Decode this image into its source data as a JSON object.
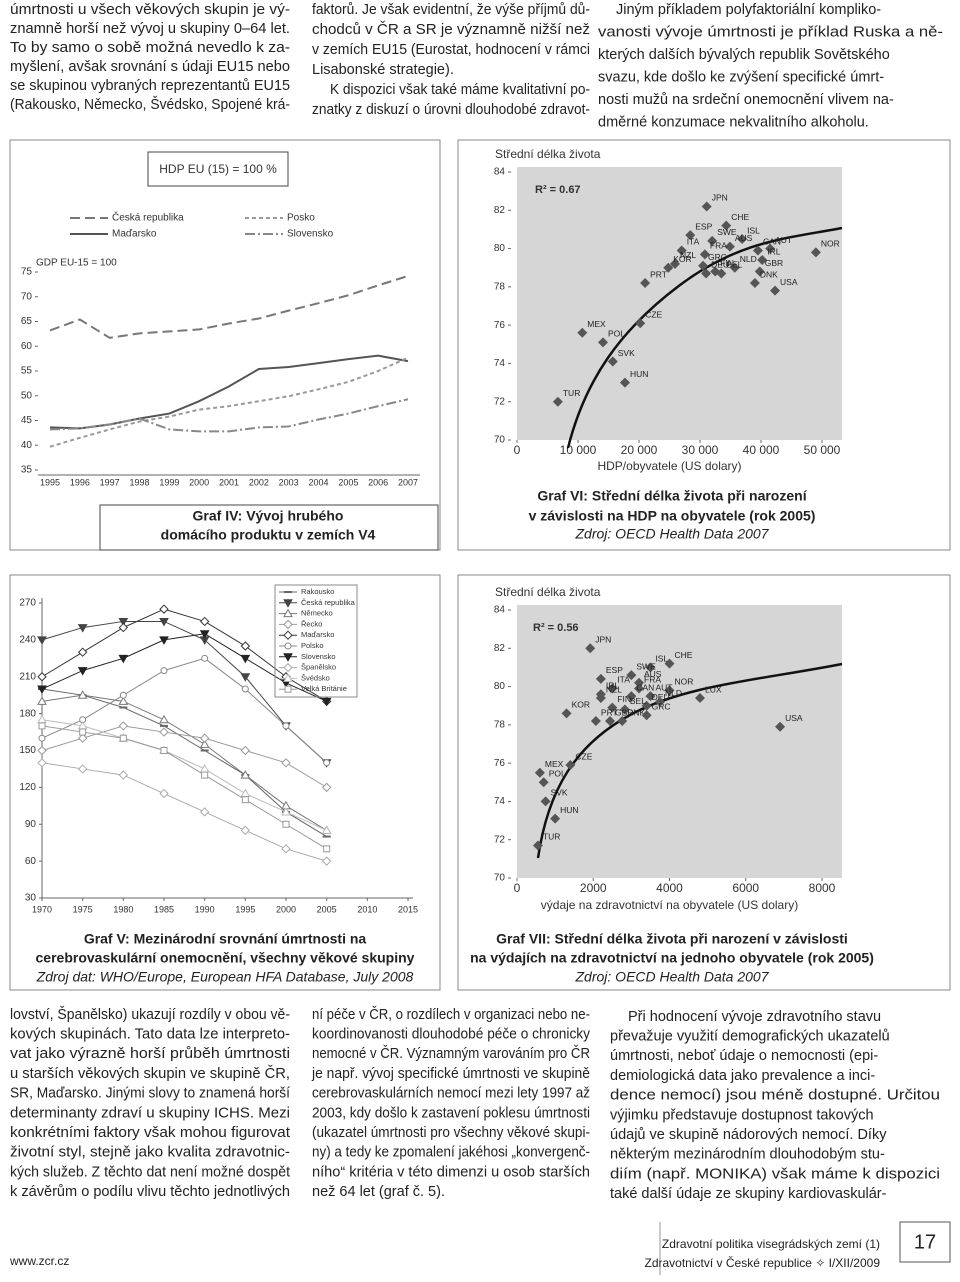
{
  "top_text": {
    "columns": [
      [
        "úmrtnosti u všech věkových skupin je vý-",
        "znamně horší než vývoj u skupiny 0–64 let.",
        "To by samo o sobě možná nevedlo k za-",
        "myšlení, avšak srovnání s údaji EU15 nebo",
        "se skupinou vybraných reprezentantů EU15",
        "(Rakousko, Německo, Švédsko, Spojené krá-"
      ],
      [
        "faktorů. Je však evidentní, že výše příjmů dů-",
        "chodců v ČR a SR je významně nižší než",
        "v zemích EU15 (Eurostat, hodnocení v rámci",
        "Lisabonské strategie).",
        "K dispozici však také máme kvalitativní po-",
        "znatky z diskuzí o úrovni dlouhodobé zdravot-"
      ],
      [
        "Jiným příkladem polyfaktoriální kompliko-",
        "vanosti vývoje úmrtnosti je příklad Ruska a ně-",
        "kterých dalších bývalých republik Sovětského",
        "svazu, kde došlo ke zvýšení specifické úmrt-",
        "nosti mužů na srdeční onemocnění vlivem na-",
        "dměrné konzumace nekvalitního alkoholu."
      ]
    ]
  },
  "chart_data": [
    {
      "type": "line",
      "title": [
        "Graf IV: Vývoj hrubého",
        "domácího produktu v zemích V4"
      ],
      "annotation": "HDP EU (15) = 100 %",
      "subtitle": "GDP EU-15 = 100",
      "categories": [
        "1995",
        "1996",
        "1997",
        "1998",
        "1999",
        "2000",
        "2001",
        "2002",
        "2003",
        "2004",
        "2005",
        "2006",
        "2007"
      ],
      "series": [
        {
          "name": "Česká republika",
          "color": "#777777",
          "dash": "10,5",
          "values": [
            63.2,
            65.4,
            61.7,
            62.6,
            63.0,
            63.4,
            64.6,
            65.6,
            67.2,
            68.7,
            70.3,
            72.3,
            74.2
          ]
        },
        {
          "name": "Maďarsko",
          "color": "#555555",
          "dash": "none",
          "values": [
            43.6,
            43.4,
            44.2,
            45.4,
            46.4,
            48.9,
            51.9,
            55.4,
            55.8,
            56.6,
            57.4,
            58.1,
            57.0
          ]
        },
        {
          "name": "Posko",
          "color": "#999999",
          "dash": "4,3",
          "values": [
            39.7,
            41.5,
            43.2,
            44.8,
            45.8,
            47.2,
            47.9,
            48.9,
            49.9,
            51.3,
            52.8,
            55.0,
            57.7
          ]
        },
        {
          "name": "Slovensko",
          "color": "#888888",
          "dash": "10,3,2,3",
          "values": [
            43.2,
            43.4,
            44.2,
            45.4,
            43.2,
            42.8,
            42.8,
            43.6,
            43.8,
            45.2,
            46.4,
            47.9,
            49.3
          ]
        }
      ],
      "ylim": [
        35,
        75
      ],
      "yticks": [
        35,
        40,
        45,
        50,
        55,
        60,
        65,
        70,
        75
      ]
    },
    {
      "type": "scatter",
      "title": [
        "Graf VI: Střední délka života při narození",
        "v závislosti na HDP na obyvatele (rok 2005)"
      ],
      "source": "Zdroj: OECD Health Data 2007",
      "ylabel": "Střední délka života",
      "xlabel": "HDP/obyvatele (US dolary)",
      "r2": "R² = 0.67",
      "color": "#555555",
      "labels": [
        "JPN",
        "CHE",
        "SWE",
        "ISL",
        "ESP",
        "AUS",
        "ITA",
        "CAN",
        "FRA",
        "AUT",
        "NOR",
        "NZL",
        "GRC",
        "KOR",
        "NLD",
        "IRL",
        "FIN",
        "BEL",
        "GBR",
        "DEU",
        "DNK",
        "USA",
        "PRT",
        "MEX",
        "POL",
        "CZE",
        "SVK",
        "HUN",
        "TUR"
      ],
      "x": [
        31100,
        34300,
        32000,
        36900,
        28400,
        34900,
        27000,
        39500,
        30800,
        41500,
        49000,
        25900,
        30500,
        24800,
        35700,
        40200,
        32500,
        33500,
        39800,
        31000,
        39000,
        42300,
        21000,
        10700,
        14100,
        20200,
        15700,
        17700,
        6700
      ],
      "y": [
        82.2,
        81.2,
        80.4,
        80.5,
        80.7,
        80.1,
        79.9,
        79.9,
        79.7,
        80.0,
        79.8,
        79.2,
        79.1,
        79.0,
        79.0,
        79.4,
        78.8,
        78.7,
        78.8,
        78.7,
        78.2,
        77.8,
        78.2,
        75.6,
        75.1,
        76.1,
        74.1,
        73.0,
        72.0
      ],
      "xlim": [
        0,
        50000
      ],
      "xticks": [
        0,
        {
          "value": 10000,
          "label": "10 000"
        },
        {
          "value": 20000,
          "label": "20 000"
        },
        {
          "value": 30000,
          "label": "30 000"
        },
        {
          "value": 40000,
          "label": "40 000"
        },
        {
          "value": 50000,
          "label": "50 000"
        }
      ],
      "ylim": [
        70,
        84
      ],
      "yticks": [
        70,
        72,
        74,
        76,
        78,
        80,
        82,
        84
      ]
    },
    {
      "type": "line",
      "title": [
        "Graf V: Mezinárodní srovnání úmrtnosti na",
        "cerebrovaskulární onemocnění, všechny věkové skupiny"
      ],
      "source": "Zdroj dat: WHO/Europe, European HFA Database, July 2008",
      "x": [
        1970,
        1975,
        1980,
        1985,
        1990,
        1995,
        2000,
        2005
      ],
      "series": [
        {
          "name": "Rakousko",
          "color": "#666666",
          "marker": "dash",
          "values": [
            200,
            195,
            185,
            170,
            150,
            130,
            100,
            80
          ]
        },
        {
          "name": "Česká republika",
          "color": "#444444",
          "marker": "tri-down",
          "values": [
            240,
            250,
            255,
            255,
            240,
            210,
            170,
            140
          ]
        },
        {
          "name": "Německo",
          "color": "#777777",
          "marker": "tri-up",
          "values": [
            190,
            195,
            190,
            175,
            155,
            130,
            105,
            85
          ]
        },
        {
          "name": "Řecko",
          "color": "#999999",
          "marker": "diamond",
          "values": [
            150,
            160,
            170,
            165,
            160,
            150,
            140,
            120
          ]
        },
        {
          "name": "Maďarsko",
          "color": "#333333",
          "marker": "diamond",
          "values": [
            210,
            230,
            250,
            265,
            255,
            235,
            210,
            190
          ]
        },
        {
          "name": "Polsko",
          "color": "#888888",
          "marker": "circle",
          "values": [
            160,
            175,
            195,
            215,
            225,
            200,
            170,
            140
          ]
        },
        {
          "name": "Slovensko",
          "color": "#222222",
          "marker": "tri-down",
          "values": [
            200,
            215,
            225,
            240,
            245,
            225,
            205,
            190
          ]
        },
        {
          "name": "Španělsko",
          "color": "#aaaaaa",
          "marker": "diamond",
          "values": [
            140,
            135,
            130,
            115,
            100,
            85,
            70,
            60
          ]
        },
        {
          "name": "Švédsko",
          "color": "#bbbbbb",
          "marker": "tri-up",
          "values": [
            175,
            170,
            160,
            150,
            135,
            115,
            100,
            85
          ]
        },
        {
          "name": "Velká Británie",
          "color": "#999999",
          "marker": "square",
          "values": [
            170,
            165,
            160,
            150,
            130,
            110,
            90,
            70
          ]
        }
      ],
      "xlim": [
        1970,
        2015
      ],
      "xticks": [
        1970,
        1975,
        1980,
        1985,
        1990,
        1995,
        2000,
        2005,
        2010,
        2015
      ],
      "ylim": [
        30,
        270
      ],
      "yticks": [
        30,
        60,
        90,
        120,
        150,
        180,
        210,
        240,
        270
      ]
    },
    {
      "type": "scatter",
      "title": [
        "Graf VII: Střední délka života při narození v závislosti",
        "na výdajích na zdravotnictví na jednoho obyvatele (rok 2005)"
      ],
      "source": "Zdroj: OECD Health Data 2007",
      "ylabel": "Střední délka života",
      "xlabel": "výdaje na zdravotnictví na obyvatele (US dolary)",
      "r2": "R² = 0.56",
      "color": "#555555",
      "labels": [
        "JPN",
        "ISL",
        "CHE",
        "ESP",
        "SWE",
        "AUS",
        "ITA",
        "FRA",
        "NOR",
        "IRL",
        "CAN",
        "NZL",
        "AUT",
        "FIN",
        "DEU",
        "NLD",
        "LUX",
        "BEL",
        "KOR",
        "PRT",
        "GBR",
        "DNK",
        "GRC",
        "USA",
        "MEX",
        "CZE",
        "POL",
        "SVK",
        "HUN",
        "TUR"
      ],
      "x": [
        1920,
        3500,
        4000,
        2200,
        3000,
        3200,
        2500,
        3200,
        4000,
        2200,
        3000,
        2200,
        3500,
        2500,
        3400,
        3750,
        4800,
        2830,
        1300,
        2070,
        2440,
        2760,
        3400,
        6900,
        600,
        1400,
        700,
        750,
        1000,
        550
      ],
      "y": [
        82.0,
        81.0,
        81.2,
        80.4,
        80.6,
        80.2,
        79.9,
        79.9,
        79.8,
        79.6,
        79.5,
        79.4,
        79.5,
        78.9,
        79.0,
        79.2,
        79.4,
        78.8,
        78.6,
        78.2,
        78.2,
        78.2,
        78.5,
        77.9,
        75.5,
        75.9,
        75.0,
        74.0,
        73.1,
        71.7
      ],
      "xlim": [
        0,
        8000
      ],
      "xticks": [
        0,
        2000,
        4000,
        6000,
        8000
      ],
      "ylim": [
        70,
        84
      ],
      "yticks": [
        70,
        72,
        74,
        76,
        78,
        80,
        82,
        84
      ]
    }
  ],
  "bottom_text": {
    "columns": [
      [
        "lovství, Španělsko) ukazují rozdíly v obou vě-",
        "kových skupinách. Tato data lze interpreto-",
        "vat jako výrazně horší průběh úmrtnosti",
        "u starších věkových skupin ve skupině ČR,",
        "SR, Maďarsko. Jinými slovy to znamená horší",
        "determinanty zdraví u skupiny ICHS. Mezi",
        "konkrétními faktory však mohou figurovat",
        "životní styl, stejně jako kvalita zdravotnic-",
        "kých služeb. Z těchto dat není možné dospět",
        "k závěrům o podílu vlivu těchto jednotlivých"
      ],
      [
        "ní péče v ČR, o rozdílech v organizaci nebo ne-",
        "koordinovanosti dlouhodobé péče o chronicky",
        "nemocné v ČR. Významným varováním pro ČR",
        "je např. vývoj specifické úmrtnosti ve skupině",
        "cerebrovaskulárních nemocí mezi lety 1997 až",
        "2003, kdy došlo k zastavení poklesu úmrtnosti",
        "(ukazatel úmrtnosti pro všechny věkové skupi-",
        "ny) a tedy ke zpomalení jakéhosi „konvergenč-",
        "ního“ kritéria v této dimenzi u osob starších",
        "než 64 let (graf č. 5)."
      ],
      [
        "Při hodnocení vývoje zdravotního stavu",
        "převažuje využití demografických ukazatelů",
        "úmrtnosti, neboť údaje o nemocnosti (epi-",
        "demiologická data jako prevalence a inci-",
        "dence nemocí) jsou méně dostupné. Určitou",
        "výjimku představuje dostupnost takových",
        "údajů ve skupině nádorových nemocí. Díky",
        "některým mezinárodním dlouhodobým stu-",
        "diím (např. MONIKA) však máme k dispozici",
        "také další údaje ze skupiny kardiovaskulár-"
      ]
    ]
  },
  "footer": {
    "url": "www.zcr.cz",
    "series": "Zdravotní politika visegrádských zemí (1)",
    "journal": "Zdravotnictví v České republice ✧ I/XII/2009",
    "page": "17"
  }
}
